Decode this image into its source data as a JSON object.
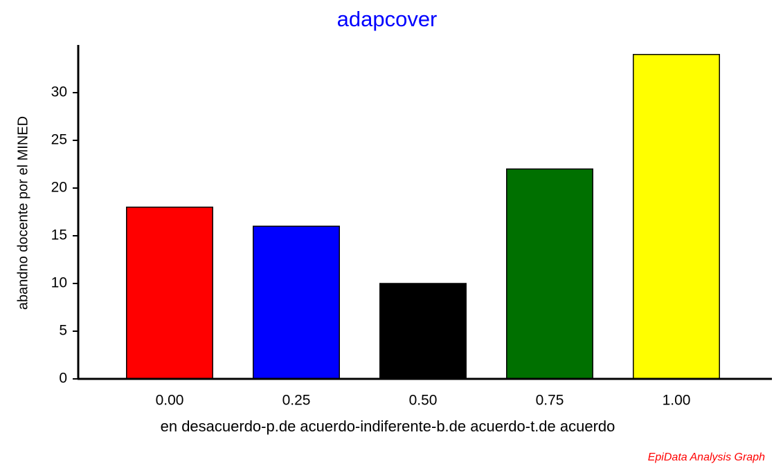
{
  "chart_data": {
    "type": "bar",
    "title": "adapcover",
    "x_label": "en desacuerdo-p.de acuerdo-indiferente-b.de acuerdo-t.de acuerdo",
    "y_label": "abandno docente por el MINED",
    "categories": [
      "0.00",
      "0.25",
      "0.50",
      "0.75",
      "1.00"
    ],
    "values": [
      18,
      16,
      10,
      22,
      34
    ],
    "colors": [
      "#ff0000",
      "#0000ff",
      "#000000",
      "#007000",
      "#ffff00"
    ],
    "ylim": [
      0,
      35
    ],
    "yticks": [
      0,
      5,
      10,
      15,
      20,
      25,
      30
    ],
    "grid": false,
    "footer": "EpiData Analysis Graph"
  }
}
